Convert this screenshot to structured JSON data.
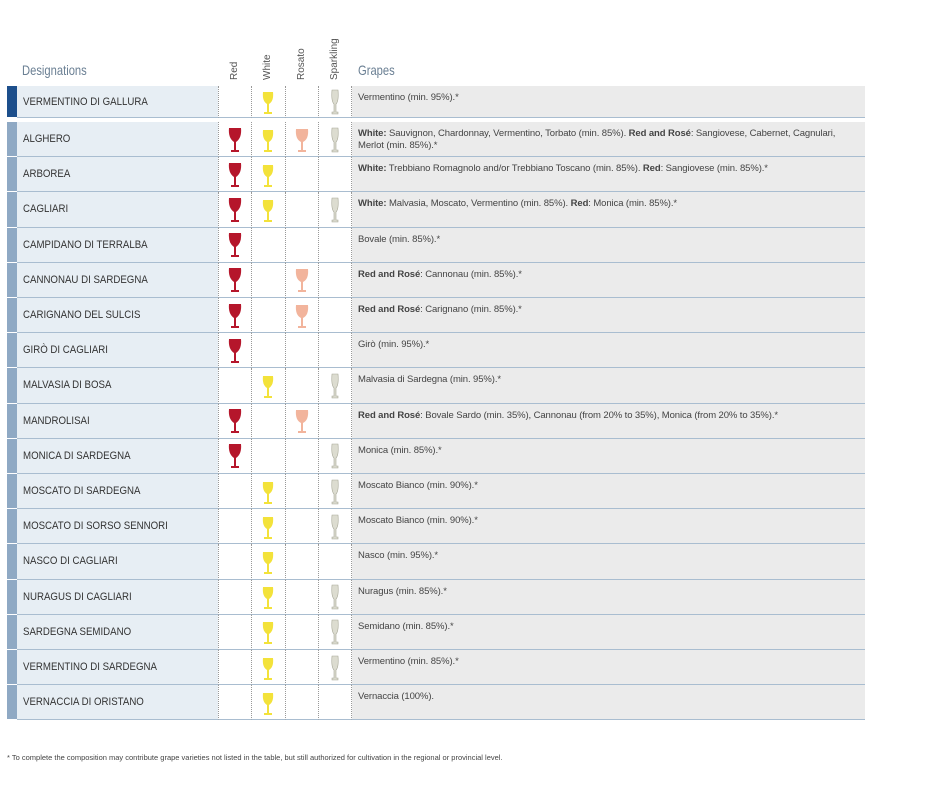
{
  "table": {
    "headers": {
      "designations": "Designations",
      "types": [
        "Red",
        "White",
        "Rosato",
        "Sparkling"
      ],
      "grapes": "Grapes"
    },
    "rows": [
      {
        "name": "VERMENTINO DI GALLURA",
        "types": [
          false,
          true,
          false,
          true
        ],
        "grapes": [
          {
            "text": "Vermentino (min. 95%).*",
            "bold": false
          }
        ]
      },
      {
        "name": "ALGHERO",
        "types": [
          true,
          true,
          true,
          true
        ],
        "grapes": [
          {
            "text": "White:",
            "bold": true
          },
          {
            "text": " Sauvignon, Chardonnay, Vermentino, Torbato (min. 85%). ",
            "bold": false
          },
          {
            "text": "Red and Rosé",
            "bold": true
          },
          {
            "text": ": Sangiovese, Cabernet, Cagnulari, Merlot (min. 85%).*",
            "bold": false
          }
        ]
      },
      {
        "name": "ARBOREA",
        "types": [
          true,
          true,
          false,
          false
        ],
        "grapes": [
          {
            "text": "White:",
            "bold": true
          },
          {
            "text": " Trebbiano Romagnolo and/or Trebbiano Toscano (min. 85%). ",
            "bold": false
          },
          {
            "text": "Red",
            "bold": true
          },
          {
            "text": ": Sangiovese (min. 85%).*",
            "bold": false
          }
        ]
      },
      {
        "name": "CAGLIARI",
        "types": [
          true,
          true,
          false,
          true
        ],
        "grapes": [
          {
            "text": "White:",
            "bold": true
          },
          {
            "text": " Malvasia, Moscato, Vermentino (min. 85%). ",
            "bold": false
          },
          {
            "text": "Red",
            "bold": true
          },
          {
            "text": ": Monica (min. 85%).*",
            "bold": false
          }
        ]
      },
      {
        "name": "CAMPIDANO DI TERRALBA",
        "types": [
          true,
          false,
          false,
          false
        ],
        "grapes": [
          {
            "text": "Bovale (min. 85%).*",
            "bold": false
          }
        ]
      },
      {
        "name": "CANNONAU DI SARDEGNA",
        "types": [
          true,
          false,
          true,
          false
        ],
        "grapes": [
          {
            "text": "Red and Rosé",
            "bold": true
          },
          {
            "text": ": Cannonau (min. 85%).*",
            "bold": false
          }
        ]
      },
      {
        "name": "CARIGNANO DEL SULCIS",
        "types": [
          true,
          false,
          true,
          false
        ],
        "grapes": [
          {
            "text": "Red and Rosé",
            "bold": true
          },
          {
            "text": ": Carignano (min. 85%).*",
            "bold": false
          }
        ]
      },
      {
        "name": "GIRÒ DI CAGLIARI",
        "types": [
          true,
          false,
          false,
          false
        ],
        "grapes": [
          {
            "text": "Girò (min. 95%).*",
            "bold": false
          }
        ]
      },
      {
        "name": "MALVASIA DI BOSA",
        "types": [
          false,
          true,
          false,
          true
        ],
        "grapes": [
          {
            "text": "Malvasia di Sardegna (min. 95%).*",
            "bold": false
          }
        ]
      },
      {
        "name": "MANDROLISAI",
        "types": [
          true,
          false,
          true,
          false
        ],
        "grapes": [
          {
            "text": "Red and Rosé",
            "bold": true
          },
          {
            "text": ": Bovale Sardo (min. 35%), Cannonau (from 20% to 35%), Monica (from 20% to 35%).*",
            "bold": false
          }
        ]
      },
      {
        "name": "MONICA DI SARDEGNA",
        "types": [
          true,
          false,
          false,
          true
        ],
        "grapes": [
          {
            "text": "Monica (min. 85%).*",
            "bold": false
          }
        ]
      },
      {
        "name": "MOSCATO DI SARDEGNA",
        "types": [
          false,
          true,
          false,
          true
        ],
        "grapes": [
          {
            "text": "Moscato Bianco (min. 90%).*",
            "bold": false
          }
        ]
      },
      {
        "name": "MOSCATO DI SORSO SENNORI",
        "types": [
          false,
          true,
          false,
          true
        ],
        "grapes": [
          {
            "text": "Moscato Bianco (min. 90%).*",
            "bold": false
          }
        ]
      },
      {
        "name": "NASCO DI CAGLIARI",
        "types": [
          false,
          true,
          false,
          false
        ],
        "grapes": [
          {
            "text": "Nasco (min. 95%).*",
            "bold": false
          }
        ]
      },
      {
        "name": "NURAGUS DI CAGLIARI",
        "types": [
          false,
          true,
          false,
          true
        ],
        "grapes": [
          {
            "text": "Nuragus (min. 85%).*",
            "bold": false
          }
        ]
      },
      {
        "name": "SARDEGNA SEMIDANO",
        "types": [
          false,
          true,
          false,
          true
        ],
        "grapes": [
          {
            "text": "Semidano (min. 85%).*",
            "bold": false
          }
        ]
      },
      {
        "name": "VERMENTINO DI SARDEGNA",
        "types": [
          false,
          true,
          false,
          true
        ],
        "grapes": [
          {
            "text": "Vermentino (min. 85%).*",
            "bold": false
          }
        ]
      },
      {
        "name": "VERNACCIA DI ORISTANO",
        "types": [
          false,
          true,
          false,
          false
        ],
        "grapes": [
          {
            "text": "Vernaccia (100%).",
            "bold": false
          }
        ]
      }
    ]
  },
  "footnote": "* To complete the composition may contribute grape varieties not listed in the table, but still authorized for cultivation in the regional or provincial level."
}
